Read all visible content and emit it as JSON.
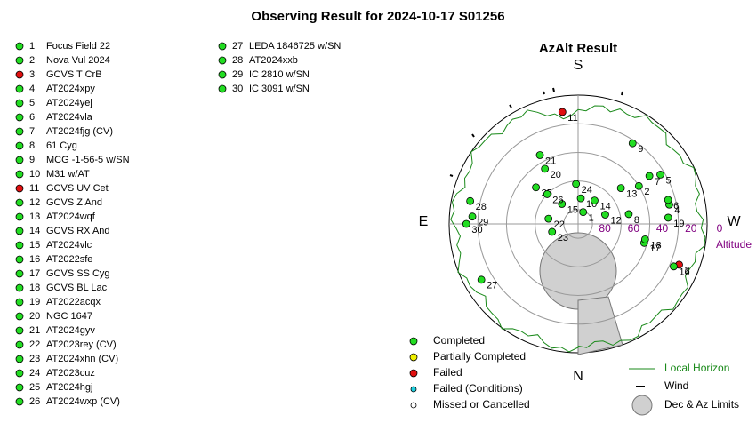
{
  "title": "Observing Result for 2024-10-17 S01256",
  "plot": {
    "title": "AzAlt Result",
    "south": "S",
    "north": "N",
    "east": "E",
    "west": "W",
    "altitude_label": "Altitude",
    "altitude_ticks": [
      80,
      60,
      40,
      20,
      0
    ]
  },
  "status_legend": [
    {
      "label": "Completed",
      "color": "#22dd22"
    },
    {
      "label": "Partially Completed",
      "color": "#f0f000"
    },
    {
      "label": "Failed",
      "color": "#e01010"
    },
    {
      "label": "Failed (Conditions)",
      "color": "#20d0e0"
    },
    {
      "label": "Missed or Cancelled",
      "color": "#ffffff"
    }
  ],
  "plot_legend": {
    "horizon": "Local Horizon",
    "wind": "Wind",
    "limits": "Dec & Az Limits"
  },
  "targets": [
    {
      "number": 1,
      "name": "Focus Field 22",
      "status": 0,
      "az": 203,
      "alt": 81
    },
    {
      "number": 2,
      "name": "Nova Vul 2024",
      "status": 0,
      "az": 238,
      "alt": 40
    },
    {
      "number": 3,
      "name": "GCVS T CrB",
      "status": 2,
      "az": 292,
      "alt": 14
    },
    {
      "number": 4,
      "name": "AT2024xpy",
      "status": 0,
      "az": 258,
      "alt": 25
    },
    {
      "number": 5,
      "name": "AT2024yej",
      "status": 0,
      "az": 239,
      "alt": 23
    },
    {
      "number": 6,
      "name": "AT2024vla",
      "status": 0,
      "az": 255,
      "alt": 25
    },
    {
      "number": 7,
      "name": "AT2024fjg (CV)",
      "status": 0,
      "az": 236,
      "alt": 30
    },
    {
      "number": 8,
      "name": "61 Cyg",
      "status": 0,
      "az": 259,
      "alt": 54
    },
    {
      "number": 9,
      "name": "MCG -1-56-5 w/SN",
      "status": 0,
      "az": 214,
      "alt": 22
    },
    {
      "number": 10,
      "name": "M31 w/AT",
      "status": 0,
      "az": 186,
      "alt": 72
    },
    {
      "number": 11,
      "name": "GCVS UV Cet",
      "status": 2,
      "az": 172,
      "alt": 11
    },
    {
      "number": 12,
      "name": "GCVS Z And",
      "status": 0,
      "az": 251,
      "alt": 70
    },
    {
      "number": 13,
      "name": "AT2024wqf",
      "status": 0,
      "az": 230,
      "alt": 51
    },
    {
      "number": 14,
      "name": "GCVS RX And",
      "status": 0,
      "az": 215,
      "alt": 70
    },
    {
      "number": 15,
      "name": "AT2024vlc",
      "status": 0,
      "az": 141,
      "alt": 72
    },
    {
      "number": 16,
      "name": "AT2022sfe",
      "status": 0,
      "az": 294,
      "alt": 17
    },
    {
      "number": 17,
      "name": "GCVS SS Cyg",
      "status": 0,
      "az": 286,
      "alt": 42
    },
    {
      "number": 18,
      "name": "GCVS BL Lac",
      "status": 0,
      "az": 283,
      "alt": 42
    },
    {
      "number": 19,
      "name": "AT2022acqx",
      "status": 0,
      "az": 266,
      "alt": 27
    },
    {
      "number": 20,
      "name": "NGC 1647",
      "status": 0,
      "az": 149,
      "alt": 45
    },
    {
      "number": 21,
      "name": "AT2024gyv",
      "status": 0,
      "az": 151,
      "alt": 35
    },
    {
      "number": 22,
      "name": "AT2023rey (CV)",
      "status": 0,
      "az": 100,
      "alt": 69
    },
    {
      "number": 23,
      "name": "AT2024xhn (CV)",
      "status": 0,
      "az": 73,
      "alt": 71
    },
    {
      "number": 24,
      "name": "AT2023cuz",
      "status": 0,
      "az": 177,
      "alt": 62
    },
    {
      "number": 25,
      "name": "AT2024hgj",
      "status": 0,
      "az": 131,
      "alt": 51
    },
    {
      "number": 26,
      "name": "AT2024wxp (CV)",
      "status": 0,
      "az": 134,
      "alt": 60
    },
    {
      "number": 27,
      "name": "LEDA 1846725 w/SN",
      "status": 0,
      "az": 60,
      "alt": 12
    },
    {
      "number": 28,
      "name": "AT2024xxb",
      "status": 0,
      "az": 102,
      "alt": 13
    },
    {
      "number": 29,
      "name": "IC 2810 w/SN",
      "status": 0,
      "az": 94,
      "alt": 16
    },
    {
      "number": 30,
      "name": "IC 3091 w/SN",
      "status": 0,
      "az": 90,
      "alt": 12
    }
  ]
}
